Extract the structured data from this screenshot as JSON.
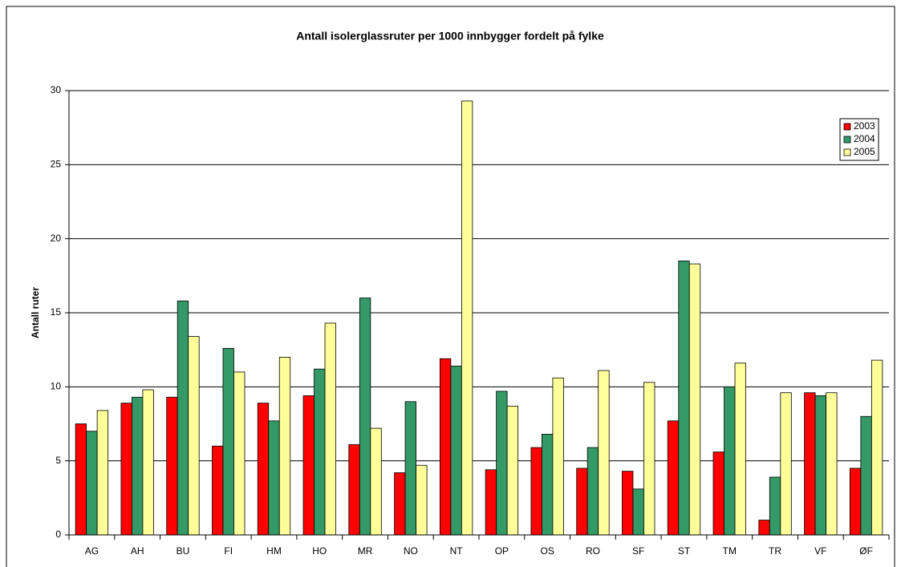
{
  "chart_data": {
    "type": "bar",
    "title": "Antall isolerglassruter per 1000 innbygger fordelt på fylke",
    "y_label": "Antall ruter",
    "categories": [
      "AG",
      "AH",
      "BU",
      "FI",
      "HM",
      "HO",
      "MR",
      "NO",
      "NT",
      "OP",
      "OS",
      "RO",
      "SF",
      "ST",
      "TM",
      "TR",
      "VF",
      "ØF"
    ],
    "series": [
      {
        "name": "2003",
        "color": "#ff0000",
        "values": [
          7.5,
          8.9,
          9.3,
          6.0,
          8.9,
          9.4,
          6.1,
          4.2,
          11.9,
          4.4,
          5.9,
          4.5,
          4.3,
          7.7,
          5.6,
          1.0,
          9.6,
          4.5
        ]
      },
      {
        "name": "2004",
        "color": "#339966",
        "values": [
          7.0,
          9.3,
          15.8,
          12.6,
          7.7,
          11.2,
          16.0,
          9.0,
          11.4,
          9.7,
          6.8,
          5.9,
          3.1,
          18.5,
          10.0,
          3.9,
          9.4,
          8.0
        ]
      },
      {
        "name": "2005",
        "color": "#ffff99",
        "values": [
          8.4,
          9.8,
          13.4,
          11.0,
          12.0,
          14.3,
          7.2,
          4.7,
          29.3,
          8.7,
          10.6,
          11.1,
          10.3,
          18.3,
          11.6,
          9.6,
          9.6,
          11.8
        ]
      }
    ],
    "ylim": [
      0,
      30
    ],
    "yticks": [
      0,
      5,
      10,
      15,
      20,
      25,
      30
    ],
    "grid": true,
    "legend": "top-right"
  }
}
